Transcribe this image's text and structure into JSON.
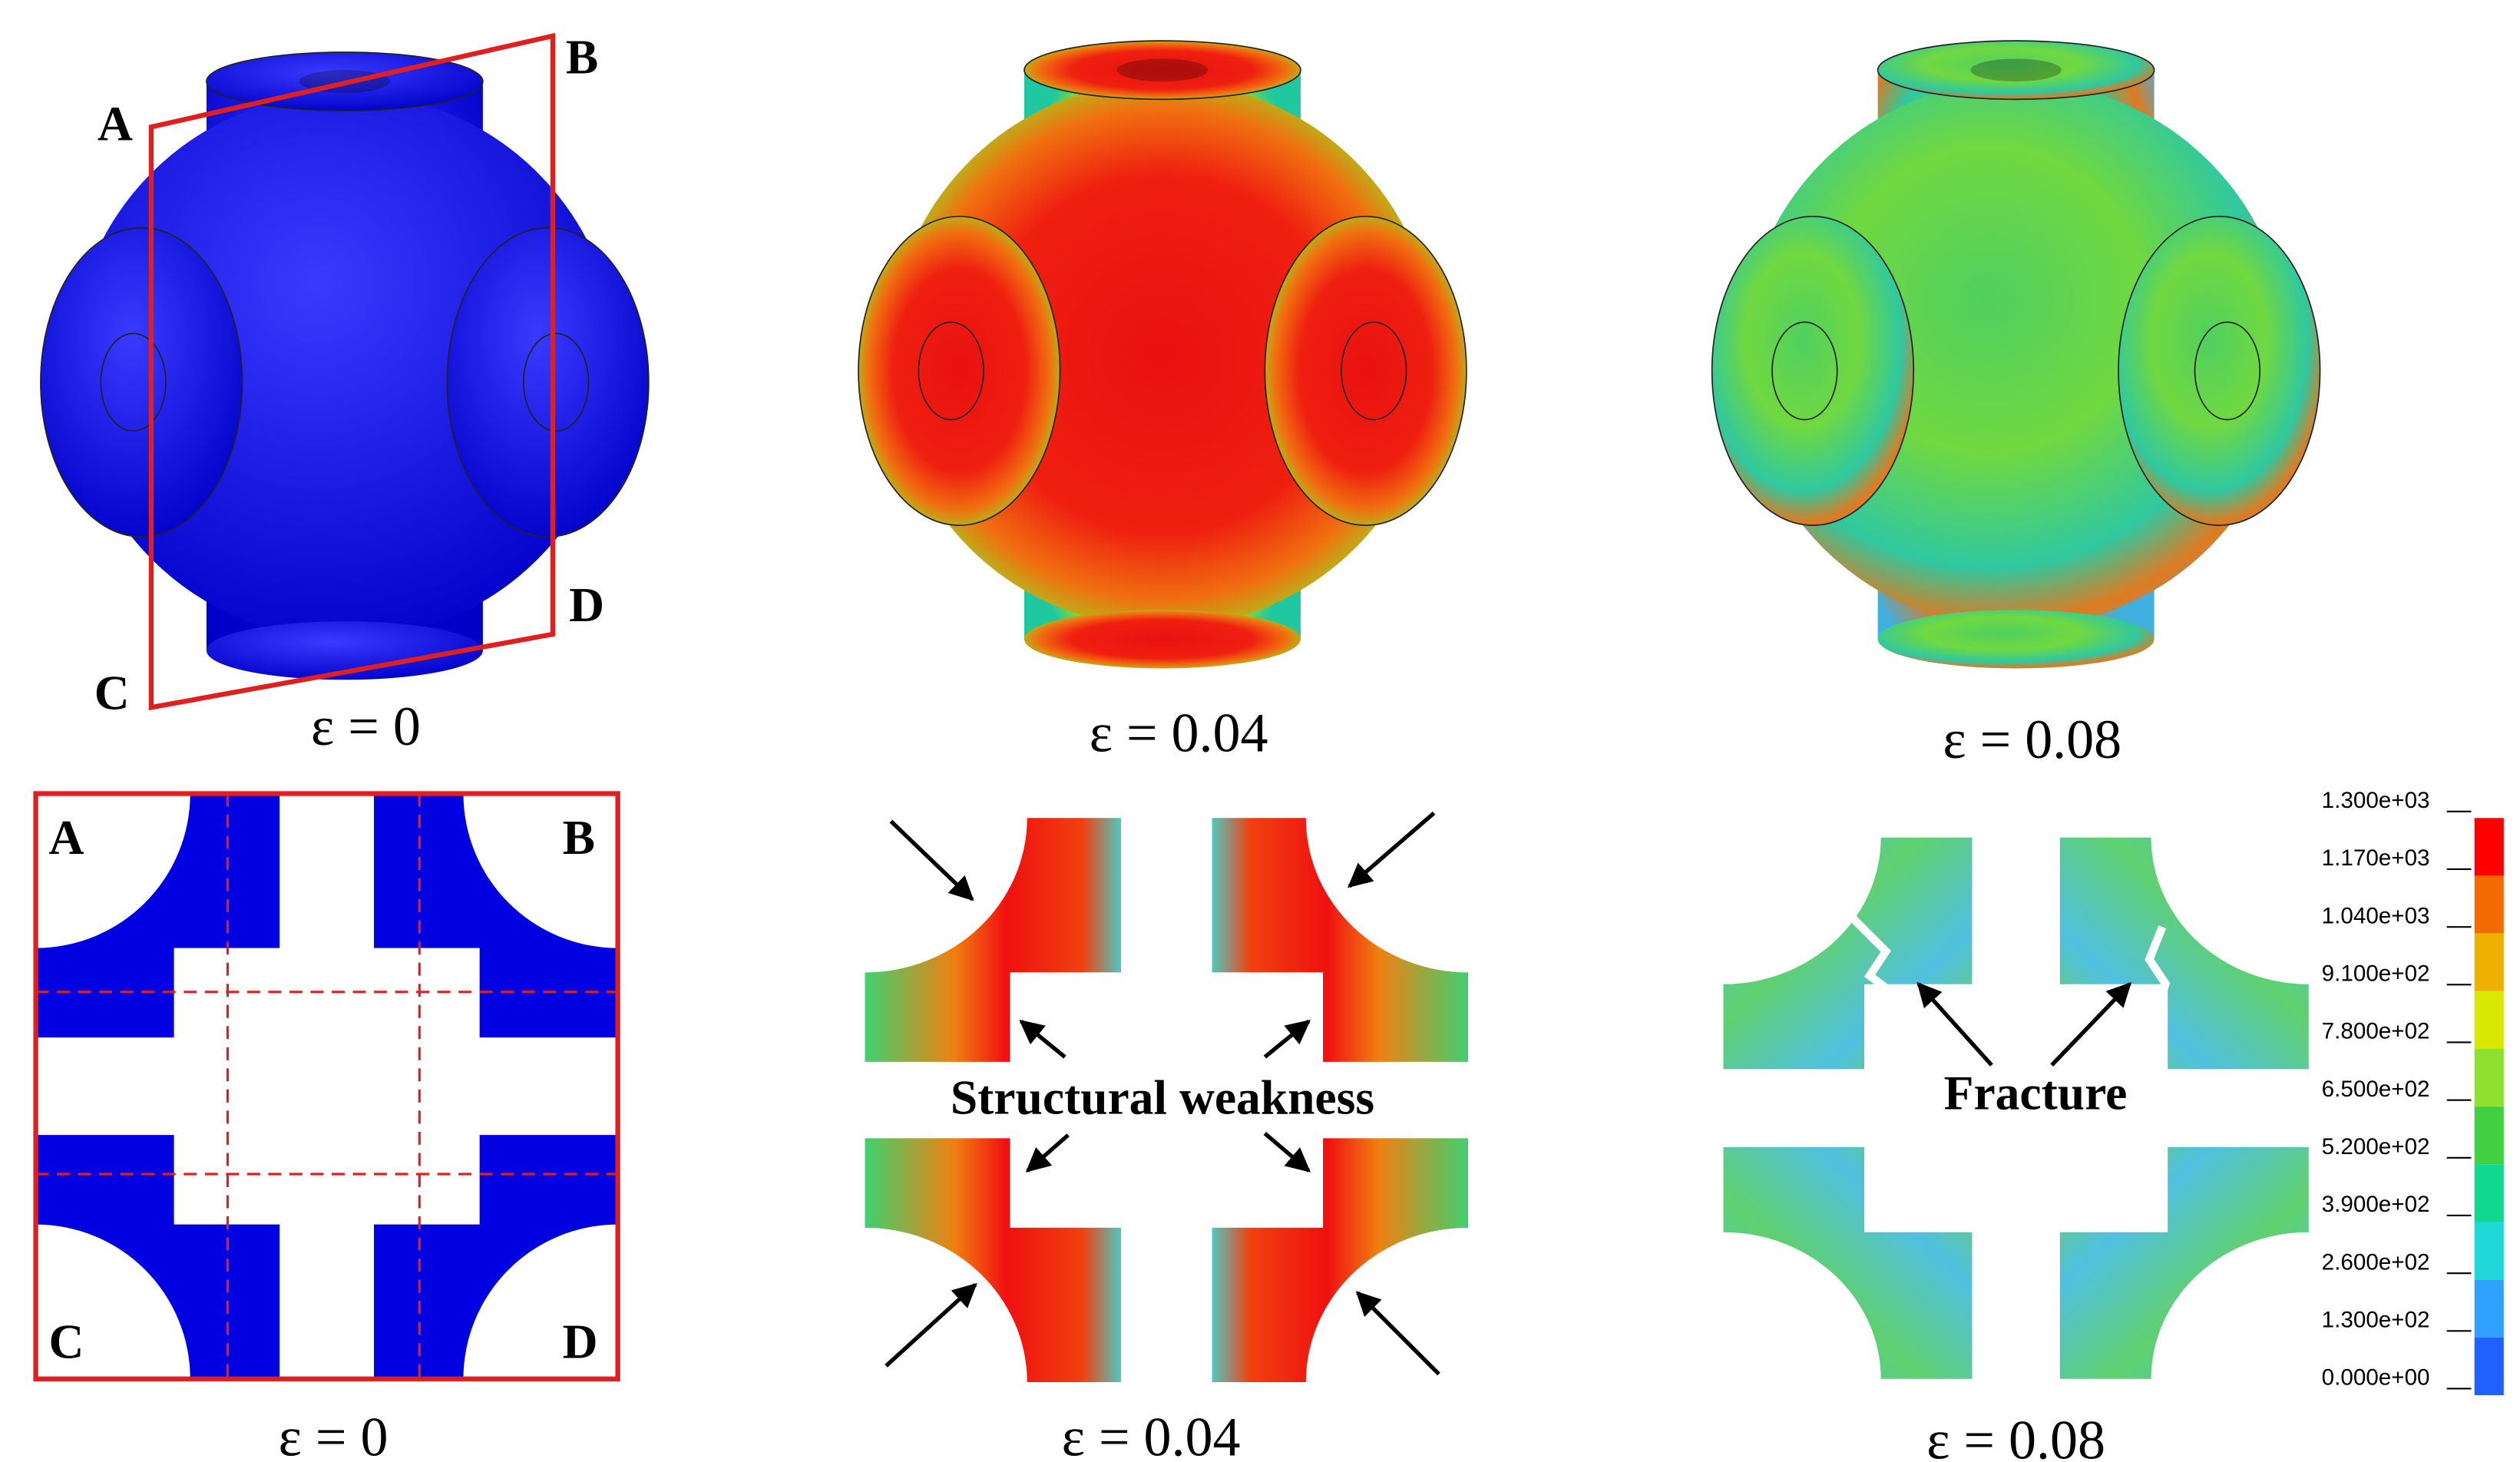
{
  "top_row": {
    "plane_labels": [
      "A",
      "B",
      "C",
      "D"
    ],
    "captions": [
      "ε = 0",
      "ε = 0.04",
      "ε = 0.08"
    ]
  },
  "bottom_row": {
    "section_labels": [
      "A",
      "B",
      "C",
      "D"
    ],
    "captions": [
      "ε = 0",
      "ε = 0.04",
      "ε = 0.08"
    ],
    "annotations": [
      "Structural weakness",
      "Fracture"
    ]
  },
  "colorbar": {
    "labels": [
      "1.300e+03",
      "1.170e+03",
      "1.040e+03",
      "9.100e+02",
      "7.800e+02",
      "6.500e+02",
      "5.200e+02",
      "3.900e+02",
      "2.600e+02",
      "1.300e+02",
      "0.000e+00"
    ]
  }
}
